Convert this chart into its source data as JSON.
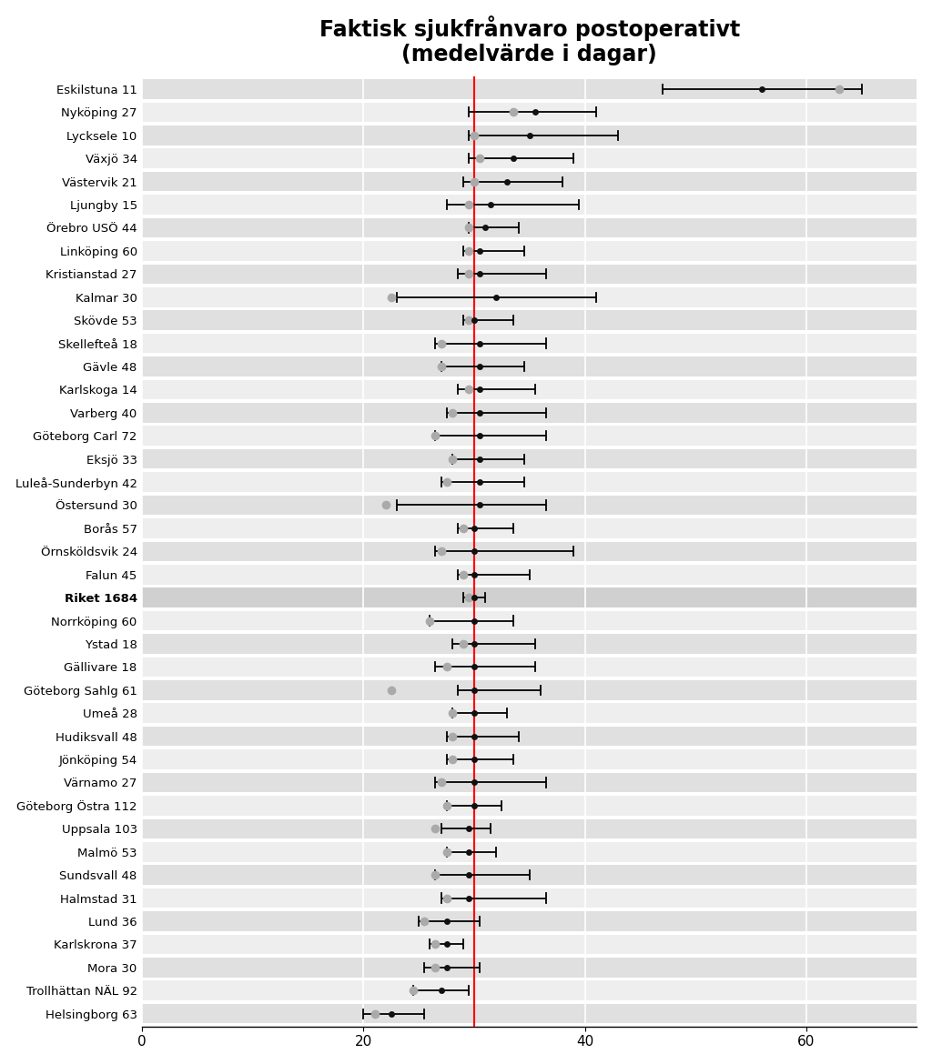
{
  "title": "Faktisk sjukfrånvaro postoperativt\n(medelvärde i dagar)",
  "title_fontsize": 17,
  "red_line_x": 30.0,
  "xlim": [
    0,
    70
  ],
  "xticks": [
    0,
    20,
    40,
    60
  ],
  "background_color": "#ffffff",
  "row_colors": [
    "#e0e0e0",
    "#eeeeee"
  ],
  "entries": [
    {
      "label": "Eskilstuna 11",
      "mean": 56.0,
      "ci_low": 47.0,
      "ci_high": 65.0,
      "gray_dot": 63.0,
      "bold": false
    },
    {
      "label": "Nyköping 27",
      "mean": 35.5,
      "ci_low": 29.5,
      "ci_high": 41.0,
      "gray_dot": 33.5,
      "bold": false
    },
    {
      "label": "Lycksele 10",
      "mean": 35.0,
      "ci_low": 29.5,
      "ci_high": 43.0,
      "gray_dot": 30.0,
      "bold": false
    },
    {
      "label": "Växjö 34",
      "mean": 33.5,
      "ci_low": 29.5,
      "ci_high": 39.0,
      "gray_dot": 30.5,
      "bold": false
    },
    {
      "label": "Västervik 21",
      "mean": 33.0,
      "ci_low": 29.0,
      "ci_high": 38.0,
      "gray_dot": 30.0,
      "bold": false
    },
    {
      "label": "Ljungby 15",
      "mean": 31.5,
      "ci_low": 27.5,
      "ci_high": 39.5,
      "gray_dot": 29.5,
      "bold": false
    },
    {
      "label": "Örebro USÖ 44",
      "mean": 31.0,
      "ci_low": 29.5,
      "ci_high": 34.0,
      "gray_dot": 29.5,
      "bold": false
    },
    {
      "label": "Linköping 60",
      "mean": 30.5,
      "ci_low": 29.0,
      "ci_high": 34.5,
      "gray_dot": 29.5,
      "bold": false
    },
    {
      "label": "Kristianstad 27",
      "mean": 30.5,
      "ci_low": 28.5,
      "ci_high": 36.5,
      "gray_dot": 29.5,
      "bold": false
    },
    {
      "label": "Kalmar 30",
      "mean": 32.0,
      "ci_low": 23.0,
      "ci_high": 41.0,
      "gray_dot": 22.5,
      "bold": false
    },
    {
      "label": "Skövde 53",
      "mean": 30.0,
      "ci_low": 29.0,
      "ci_high": 33.5,
      "gray_dot": 29.5,
      "bold": false
    },
    {
      "label": "Skellefteå 18",
      "mean": 30.5,
      "ci_low": 26.5,
      "ci_high": 36.5,
      "gray_dot": 27.0,
      "bold": false
    },
    {
      "label": "Gävle 48",
      "mean": 30.5,
      "ci_low": 27.0,
      "ci_high": 34.5,
      "gray_dot": 27.0,
      "bold": false
    },
    {
      "label": "Karlskoga 14",
      "mean": 30.5,
      "ci_low": 28.5,
      "ci_high": 35.5,
      "gray_dot": 29.5,
      "bold": false
    },
    {
      "label": "Varberg 40",
      "mean": 30.5,
      "ci_low": 27.5,
      "ci_high": 36.5,
      "gray_dot": 28.0,
      "bold": false
    },
    {
      "label": "Göteborg Carl 72",
      "mean": 30.5,
      "ci_low": 26.5,
      "ci_high": 36.5,
      "gray_dot": 26.5,
      "bold": false
    },
    {
      "label": "Eksjö 33",
      "mean": 30.5,
      "ci_low": 28.0,
      "ci_high": 34.5,
      "gray_dot": 28.0,
      "bold": false
    },
    {
      "label": "Luleå-Sunderbyn 42",
      "mean": 30.5,
      "ci_low": 27.0,
      "ci_high": 34.5,
      "gray_dot": 27.5,
      "bold": false
    },
    {
      "label": "Östersund 30",
      "mean": 30.5,
      "ci_low": 23.0,
      "ci_high": 36.5,
      "gray_dot": 22.0,
      "bold": false
    },
    {
      "label": "Borås 57",
      "mean": 30.0,
      "ci_low": 28.5,
      "ci_high": 33.5,
      "gray_dot": 29.0,
      "bold": false
    },
    {
      "label": "Örnsköldsvik 24",
      "mean": 30.0,
      "ci_low": 26.5,
      "ci_high": 39.0,
      "gray_dot": 27.0,
      "bold": false
    },
    {
      "label": "Falun 45",
      "mean": 30.0,
      "ci_low": 28.5,
      "ci_high": 35.0,
      "gray_dot": 29.0,
      "bold": false
    },
    {
      "label": "Riket 1684",
      "mean": 30.0,
      "ci_low": 29.0,
      "ci_high": 31.0,
      "gray_dot": 29.5,
      "bold": true
    },
    {
      "label": "Norrköping 60",
      "mean": 30.0,
      "ci_low": 26.0,
      "ci_high": 33.5,
      "gray_dot": 26.0,
      "bold": false
    },
    {
      "label": "Ystad 18",
      "mean": 30.0,
      "ci_low": 28.0,
      "ci_high": 35.5,
      "gray_dot": 29.0,
      "bold": false
    },
    {
      "label": "Gällivare 18",
      "mean": 30.0,
      "ci_low": 26.5,
      "ci_high": 35.5,
      "gray_dot": 27.5,
      "bold": false
    },
    {
      "label": "Göteborg Sahlg 61",
      "mean": 30.0,
      "ci_low": 28.5,
      "ci_high": 36.0,
      "gray_dot": 22.5,
      "bold": false
    },
    {
      "label": "Umeå 28",
      "mean": 30.0,
      "ci_low": 28.0,
      "ci_high": 33.0,
      "gray_dot": 28.0,
      "bold": false
    },
    {
      "label": "Hudiksvall 48",
      "mean": 30.0,
      "ci_low": 27.5,
      "ci_high": 34.0,
      "gray_dot": 28.0,
      "bold": false
    },
    {
      "label": "Jönköping 54",
      "mean": 30.0,
      "ci_low": 27.5,
      "ci_high": 33.5,
      "gray_dot": 28.0,
      "bold": false
    },
    {
      "label": "Värnamo 27",
      "mean": 30.0,
      "ci_low": 26.5,
      "ci_high": 36.5,
      "gray_dot": 27.0,
      "bold": false
    },
    {
      "label": "Göteborg Östra 112",
      "mean": 30.0,
      "ci_low": 27.5,
      "ci_high": 32.5,
      "gray_dot": 27.5,
      "bold": false
    },
    {
      "label": "Uppsala 103",
      "mean": 29.5,
      "ci_low": 27.0,
      "ci_high": 31.5,
      "gray_dot": 26.5,
      "bold": false
    },
    {
      "label": "Malmö 53",
      "mean": 29.5,
      "ci_low": 27.5,
      "ci_high": 32.0,
      "gray_dot": 27.5,
      "bold": false
    },
    {
      "label": "Sundsvall 48",
      "mean": 29.5,
      "ci_low": 26.5,
      "ci_high": 35.0,
      "gray_dot": 26.5,
      "bold": false
    },
    {
      "label": "Halmstad 31",
      "mean": 29.5,
      "ci_low": 27.0,
      "ci_high": 36.5,
      "gray_dot": 27.5,
      "bold": false
    },
    {
      "label": "Lund 36",
      "mean": 27.5,
      "ci_low": 25.0,
      "ci_high": 30.5,
      "gray_dot": 25.5,
      "bold": false
    },
    {
      "label": "Karlskrona 37",
      "mean": 27.5,
      "ci_low": 26.0,
      "ci_high": 29.0,
      "gray_dot": 26.5,
      "bold": false
    },
    {
      "label": "Mora 30",
      "mean": 27.5,
      "ci_low": 25.5,
      "ci_high": 30.5,
      "gray_dot": 26.5,
      "bold": false
    },
    {
      "label": "Trollhättan NÄL 92",
      "mean": 27.0,
      "ci_low": 24.5,
      "ci_high": 29.5,
      "gray_dot": 24.5,
      "bold": false
    },
    {
      "label": "Helsingborg 63",
      "mean": 22.5,
      "ci_low": 20.0,
      "ci_high": 25.5,
      "gray_dot": 21.0,
      "bold": false
    }
  ]
}
